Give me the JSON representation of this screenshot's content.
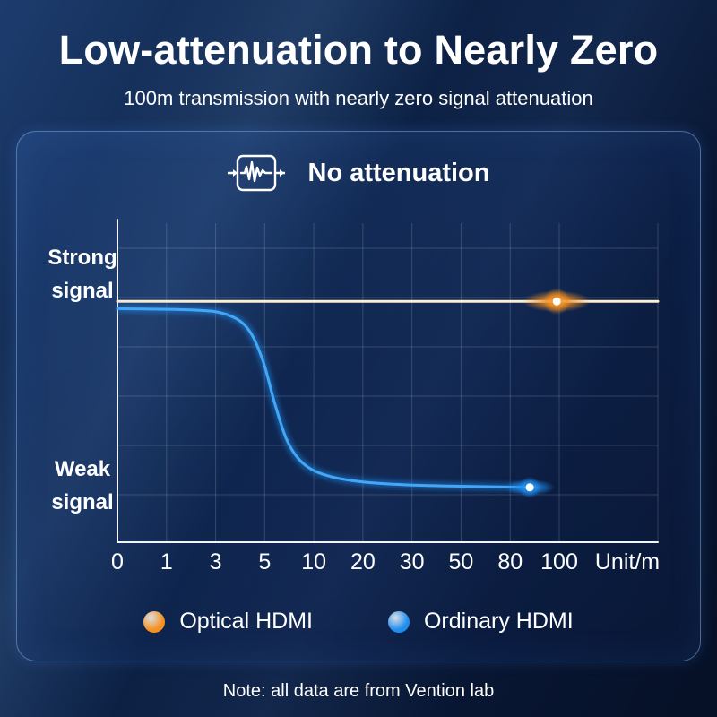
{
  "header": {
    "title": "Low-attenuation to Nearly Zero",
    "subtitle": "100m transmission with nearly zero signal attenuation"
  },
  "panel": {
    "badge": {
      "icon": "attenuation-waveform-icon",
      "label": "No attenuation"
    }
  },
  "chart_data": {
    "type": "line",
    "title": "No attenuation",
    "x_tick_labels": [
      "0",
      "1",
      "3",
      "5",
      "10",
      "20",
      "30",
      "50",
      "80",
      "100"
    ],
    "x_axis_unit": "Unit/m",
    "x_encoding": "ticks equally spaced; x given as fraction of plot width",
    "y_axis_type": "qualitative",
    "y_range": "Weak signal (0) to Strong signal (1)",
    "grid": true,
    "y_labels": [
      {
        "id": "strong",
        "lines": [
          "Strong",
          "signal"
        ]
      },
      {
        "id": "weak",
        "lines": [
          "Weak",
          "signal"
        ]
      }
    ],
    "series": [
      {
        "name": "Optical HDMI",
        "color": "#f5911f",
        "core_color": "#ffedd2",
        "points": [
          {
            "x": 0.0,
            "y": 0.755
          },
          {
            "x": 1.0,
            "y": 0.755
          }
        ],
        "marker": {
          "x": 0.813,
          "y": 0.755
        }
      },
      {
        "name": "Ordinary HDMI",
        "color": "#1e8ef0",
        "core_color": "#46a6f6",
        "points": [
          {
            "x": 0.0,
            "y": 0.732
          },
          {
            "x": 0.14,
            "y": 0.728
          },
          {
            "x": 0.2,
            "y": 0.715
          },
          {
            "x": 0.24,
            "y": 0.672
          },
          {
            "x": 0.268,
            "y": 0.575
          },
          {
            "x": 0.292,
            "y": 0.43
          },
          {
            "x": 0.315,
            "y": 0.315
          },
          {
            "x": 0.345,
            "y": 0.245
          },
          {
            "x": 0.39,
            "y": 0.208
          },
          {
            "x": 0.46,
            "y": 0.188
          },
          {
            "x": 0.57,
            "y": 0.178
          },
          {
            "x": 0.763,
            "y": 0.172
          }
        ],
        "marker": {
          "x": 0.763,
          "y": 0.172
        }
      }
    ]
  },
  "legend": [
    {
      "label": "Optical HDMI",
      "color": "#f5911f"
    },
    {
      "label": "Ordinary HDMI",
      "color": "#1e8ef0"
    }
  ],
  "footer": {
    "note": "Note: all data are from Vention lab"
  }
}
